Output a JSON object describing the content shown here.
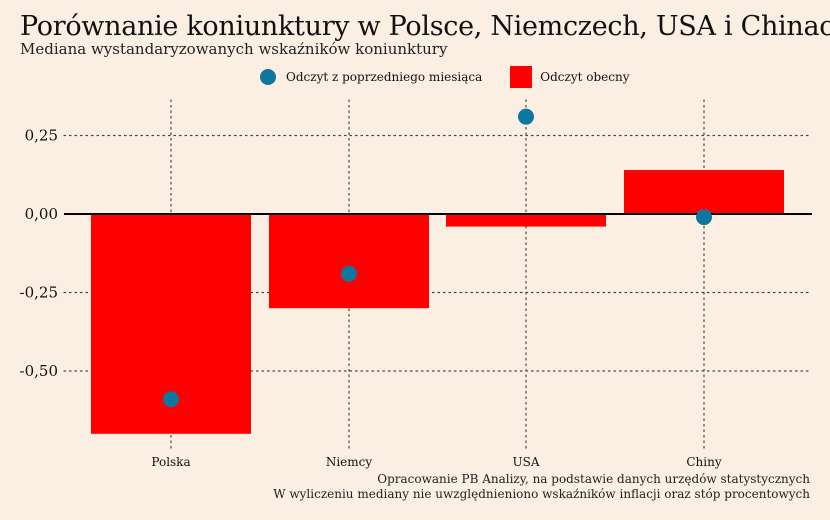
{
  "title": "Porównanie koniunktury w Polsce, Niemczech, USA i Chinach",
  "subtitle": "Mediana wystandaryzowanych wskaźników koniunktury",
  "legend": {
    "previous": "Odczyt z poprzedniego miesiąca",
    "current": "Odczyt obecny"
  },
  "colors": {
    "bar": "#FF0000",
    "dot": "#0E77A0",
    "background": "#FBEEE2"
  },
  "caption": {
    "line1": "Opracowanie PB Analizy, na podstawie danych urzędów statystycznych",
    "line2": "W wyliczeniu mediany nie uwzględnieniono wskaźników inflacji oraz stóp procentowych"
  },
  "chart_data": {
    "type": "bar",
    "categories": [
      "Polska",
      "Niemcy",
      "USA",
      "Chiny"
    ],
    "series": [
      {
        "name": "Odczyt obecny",
        "kind": "bar",
        "values": [
          -0.7,
          -0.3,
          -0.04,
          0.14
        ]
      },
      {
        "name": "Odczyt z poprzedniego miesiąca",
        "kind": "dot",
        "values": [
          -0.59,
          -0.19,
          0.31,
          -0.01
        ]
      }
    ],
    "yticks": [
      0.25,
      0.0,
      -0.25,
      -0.5
    ],
    "ytick_labels": [
      "0,25",
      "0,00",
      "-0,25",
      "-0,50"
    ],
    "ylim": [
      -0.72,
      0.35
    ],
    "grid": true,
    "legend_position": "top"
  }
}
